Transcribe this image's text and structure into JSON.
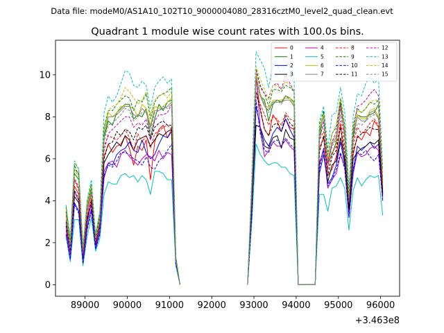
{
  "header": {
    "subtitle": "Data file: modeM0/AS1A10_102T10_9000004080_28316cztM0_level2_quad_clean.evt"
  },
  "chart_data": {
    "type": "line",
    "title": "Quadrant 1 module wise count rates with 100.0s bins.",
    "xlabel": "",
    "ylabel": "",
    "x_offset_label": "+3.463e8",
    "xlim": [
      88300,
      96450
    ],
    "ylim": [
      -0.55,
      11.65
    ],
    "xticks": [
      89000,
      90000,
      91000,
      92000,
      93000,
      94000,
      95000,
      96000
    ],
    "xtick_labels": [
      "89000",
      "90000",
      "91000",
      "92000",
      "93000",
      "94000",
      "95000",
      "96000"
    ],
    "yticks": [
      0,
      2,
      4,
      6,
      8,
      10
    ],
    "ytick_labels": [
      "0",
      "2",
      "4",
      "6",
      "8",
      "10"
    ],
    "legend_position": "top-right",
    "x": [
      88550,
      88650,
      88750,
      88850,
      88950,
      89050,
      89150,
      89250,
      89350,
      89450,
      89550,
      89650,
      89750,
      89850,
      89950,
      90050,
      90150,
      90250,
      90350,
      90450,
      90550,
      90650,
      90750,
      90850,
      90950,
      91050,
      91150,
      91250,
      92850,
      92950,
      93050,
      93150,
      93250,
      93350,
      93450,
      93550,
      93650,
      93750,
      93850,
      93950,
      94050,
      94450,
      94550,
      94650,
      94750,
      94850,
      94950,
      95050,
      95150,
      95250,
      95350,
      95450,
      95550,
      95650,
      95750,
      95850,
      95950,
      96050
    ],
    "gap_after": [
      27
    ],
    "series": [
      {
        "name": "0",
        "color": "#ff0000",
        "dash": "solid",
        "values": [
          3.3,
          1.8,
          4.7,
          4.3,
          1.4,
          3.2,
          4.1,
          2.0,
          3.0,
          6.1,
          6.7,
          6.3,
          6.6,
          6.7,
          7.1,
          6.5,
          5.7,
          6.6,
          6.4,
          6.9,
          5.0,
          6.8,
          7.4,
          7.6,
          7.0,
          7.4,
          1.2,
          0.0,
          0.0,
          4.0,
          9.8,
          8.3,
          7.4,
          7.1,
          8.1,
          7.8,
          7.3,
          7.9,
          7.5,
          7.4,
          0.0,
          0.0,
          6.5,
          7.0,
          5.2,
          5.5,
          6.1,
          7.6,
          5.8,
          3.5,
          6.2,
          7.1,
          6.9,
          7.3,
          7.1,
          7.8,
          7.5,
          4.4
        ]
      },
      {
        "name": "1",
        "color": "#008000",
        "dash": "solid",
        "values": [
          3.5,
          2.0,
          5.3,
          5.0,
          1.8,
          3.6,
          4.6,
          2.3,
          3.4,
          7.0,
          7.8,
          7.6,
          8.2,
          8.4,
          8.6,
          8.6,
          7.9,
          8.1,
          8.0,
          8.4,
          7.0,
          7.9,
          8.6,
          8.3,
          8.7,
          8.8,
          1.3,
          0.0,
          0.0,
          4.7,
          10.0,
          9.0,
          8.8,
          7.8,
          8.6,
          8.8,
          8.7,
          9.0,
          8.9,
          8.7,
          0.0,
          0.0,
          7.0,
          8.2,
          5.8,
          6.2,
          6.8,
          8.7,
          7.1,
          4.0,
          7.0,
          8.1,
          8.0,
          8.0,
          8.1,
          8.2,
          8.6,
          4.6
        ]
      },
      {
        "name": "2",
        "color": "#0000ff",
        "dash": "solid",
        "values": [
          2.4,
          1.2,
          3.9,
          3.5,
          1.0,
          2.7,
          3.6,
          1.7,
          2.5,
          5.1,
          5.8,
          5.7,
          6.2,
          6.4,
          6.5,
          6.8,
          6.4,
          6.3,
          6.9,
          6.3,
          6.0,
          6.2,
          6.7,
          7.1,
          7.0,
          7.3,
          1.0,
          0.0,
          0.0,
          3.4,
          8.5,
          7.5,
          6.9,
          6.6,
          7.2,
          7.5,
          7.3,
          7.9,
          7.4,
          7.0,
          0.0,
          0.0,
          5.3,
          6.2,
          4.8,
          5.1,
          5.7,
          6.8,
          5.7,
          3.3,
          5.5,
          6.6,
          6.4,
          6.6,
          6.8,
          6.5,
          6.7,
          4.2
        ]
      },
      {
        "name": "3",
        "color": "#000000",
        "dash": "solid",
        "values": [
          2.8,
          1.5,
          4.2,
          3.9,
          1.2,
          3.1,
          3.8,
          1.9,
          2.8,
          5.8,
          6.2,
          6.5,
          6.8,
          6.6,
          7.1,
          6.9,
          6.4,
          6.9,
          7.0,
          7.1,
          6.6,
          6.9,
          7.2,
          7.1,
          7.3,
          7.4,
          1.1,
          0.0,
          0.0,
          3.6,
          7.6,
          7.5,
          6.6,
          6.5,
          7.0,
          7.1,
          6.5,
          7.4,
          7.0,
          6.9,
          0.0,
          0.0,
          5.8,
          6.4,
          4.9,
          5.7,
          5.9,
          7.0,
          6.0,
          3.6,
          6.0,
          6.3,
          6.5,
          6.6,
          6.8,
          6.7,
          6.9,
          4.3
        ]
      },
      {
        "name": "4",
        "color": "#bf00bf",
        "dash": "solid",
        "values": [
          2.6,
          1.4,
          4.4,
          4.0,
          1.1,
          2.9,
          3.9,
          1.8,
          2.6,
          5.4,
          5.8,
          5.9,
          5.6,
          6.2,
          6.4,
          6.1,
          5.9,
          5.7,
          6.0,
          6.2,
          6.1,
          5.9,
          6.4,
          6.0,
          6.3,
          6.2,
          1.0,
          0.0,
          0.0,
          3.9,
          10.1,
          7.4,
          6.1,
          6.4,
          6.8,
          6.6,
          6.6,
          6.9,
          6.6,
          6.4,
          0.0,
          0.0,
          5.7,
          6.5,
          4.6,
          5.0,
          5.3,
          6.2,
          5.6,
          3.2,
          5.3,
          6.3,
          6.1,
          6.2,
          6.5,
          6.6,
          6.4,
          4.0
        ]
      },
      {
        "name": "5",
        "color": "#00bfbf",
        "dash": "solid",
        "values": [
          2.3,
          1.1,
          3.1,
          3.1,
          0.9,
          2.3,
          3.2,
          1.6,
          2.2,
          4.3,
          4.9,
          4.8,
          4.8,
          5.2,
          5.3,
          5.1,
          5.2,
          4.9,
          5.2,
          5.0,
          4.3,
          5.4,
          5.4,
          5.3,
          5.0,
          5.0,
          0.9,
          0.0,
          0.0,
          3.0,
          6.7,
          6.2,
          5.9,
          5.7,
          5.8,
          5.8,
          5.6,
          5.6,
          5.3,
          5.2,
          0.0,
          0.0,
          4.3,
          4.3,
          3.5,
          4.6,
          4.7,
          5.1,
          4.6,
          2.6,
          4.5,
          5.1,
          4.7,
          5.0,
          5.2,
          5.1,
          5.2,
          3.3
        ]
      },
      {
        "name": "6",
        "color": "#bfbf00",
        "dash": "solid",
        "values": [
          3.4,
          1.8,
          5.8,
          5.5,
          1.6,
          3.8,
          4.7,
          2.2,
          3.1,
          7.3,
          8.2,
          8.0,
          8.2,
          8.5,
          8.5,
          8.5,
          8.4,
          8.0,
          8.6,
          8.4,
          7.6,
          8.5,
          8.4,
          8.5,
          8.7,
          8.9,
          1.3,
          0.0,
          0.0,
          4.8,
          10.0,
          9.1,
          8.6,
          8.4,
          8.8,
          8.8,
          8.8,
          8.9,
          8.9,
          8.6,
          0.0,
          0.0,
          7.4,
          8.1,
          5.9,
          6.8,
          7.1,
          8.5,
          7.3,
          4.0,
          7.3,
          8.1,
          7.9,
          7.9,
          8.3,
          8.4,
          8.0,
          4.8
        ]
      },
      {
        "name": "7",
        "color": "#808080",
        "dash": "solid",
        "values": [
          3.4,
          1.8,
          5.5,
          5.3,
          1.6,
          3.6,
          4.5,
          2.1,
          3.0,
          7.1,
          8.0,
          8.0,
          8.1,
          8.3,
          8.5,
          8.5,
          8.1,
          8.0,
          8.4,
          8.2,
          7.5,
          8.3,
          8.3,
          8.4,
          8.5,
          8.7,
          1.3,
          0.0,
          0.0,
          4.7,
          9.9,
          9.0,
          8.5,
          8.3,
          8.7,
          8.7,
          8.7,
          8.8,
          8.8,
          8.5,
          0.0,
          0.0,
          7.3,
          8.0,
          5.8,
          6.7,
          7.0,
          8.4,
          7.2,
          3.9,
          7.2,
          8.0,
          7.8,
          7.8,
          8.2,
          8.3,
          7.9,
          4.7
        ]
      },
      {
        "name": "8",
        "color": "#ff0000",
        "dash": "dashed",
        "values": [
          3.6,
          2.0,
          5.0,
          4.5,
          1.5,
          3.5,
          4.3,
          2.1,
          3.2,
          6.6,
          7.1,
          7.0,
          6.9,
          7.1,
          7.4,
          7.0,
          6.4,
          7.2,
          6.8,
          7.1,
          6.5,
          7.2,
          7.3,
          7.5,
          7.6,
          7.4,
          1.2,
          0.0,
          0.0,
          4.2,
          9.0,
          8.6,
          8.1,
          7.6,
          8.0,
          7.9,
          7.6,
          8.2,
          7.9,
          7.8,
          0.0,
          0.0,
          6.9,
          7.3,
          5.5,
          6.3,
          6.6,
          7.8,
          6.6,
          3.8,
          6.7,
          7.5,
          7.2,
          7.4,
          7.7,
          7.9,
          7.6,
          4.5
        ]
      },
      {
        "name": "9",
        "color": "#008000",
        "dash": "dashed",
        "values": [
          3.7,
          2.1,
          5.7,
          5.2,
          1.7,
          3.9,
          4.8,
          2.3,
          3.3,
          7.5,
          8.3,
          8.3,
          8.6,
          8.8,
          9.0,
          8.9,
          8.3,
          8.8,
          8.7,
          9.1,
          7.9,
          8.7,
          9.0,
          9.1,
          9.2,
          9.4,
          1.3,
          0.0,
          0.0,
          5.0,
          10.3,
          9.5,
          9.1,
          8.5,
          9.3,
          9.3,
          9.2,
          9.5,
          9.4,
          9.2,
          0.0,
          0.0,
          7.6,
          8.3,
          6.2,
          7.2,
          7.5,
          8.9,
          7.6,
          4.2,
          7.6,
          8.4,
          8.2,
          8.4,
          8.7,
          8.6,
          8.8,
          4.9
        ]
      },
      {
        "name": "10",
        "color": "#0000ff",
        "dash": "dashed",
        "values": [
          2.4,
          1.2,
          3.8,
          3.4,
          1.0,
          2.6,
          3.5,
          1.7,
          2.4,
          5.2,
          5.7,
          5.6,
          5.9,
          6.3,
          6.3,
          6.2,
          6.0,
          5.9,
          5.7,
          6.1,
          5.6,
          5.5,
          5.9,
          6.1,
          6.4,
          6.7,
          1.0,
          0.0,
          0.0,
          3.3,
          8.8,
          7.2,
          6.4,
          6.3,
          6.8,
          6.9,
          6.6,
          7.0,
          6.7,
          6.5,
          0.0,
          0.0,
          5.5,
          6.5,
          4.7,
          5.0,
          5.5,
          6.3,
          5.5,
          3.2,
          5.4,
          6.3,
          6.2,
          6.4,
          6.1,
          5.9,
          6.2,
          4.0
        ]
      },
      {
        "name": "11",
        "color": "#000000",
        "dash": "dashed",
        "values": [
          3.0,
          1.6,
          4.5,
          4.1,
          1.3,
          3.2,
          4.0,
          1.9,
          2.9,
          6.0,
          6.7,
          6.8,
          7.3,
          7.1,
          7.4,
          7.3,
          6.9,
          7.5,
          7.4,
          7.6,
          6.9,
          7.5,
          7.7,
          7.8,
          7.6,
          7.6,
          1.2,
          0.0,
          0.0,
          3.9,
          9.2,
          8.4,
          7.4,
          7.1,
          7.6,
          7.7,
          7.3,
          8.1,
          7.7,
          7.5,
          0.0,
          0.0,
          6.3,
          7.1,
          5.2,
          6.1,
          6.4,
          7.5,
          6.3,
          3.7,
          6.4,
          7.0,
          7.2,
          7.3,
          7.5,
          7.4,
          7.4,
          4.4
        ]
      },
      {
        "name": "12",
        "color": "#bf00bf",
        "dash": "dashed",
        "values": [
          2.9,
          1.6,
          5.0,
          4.6,
          1.4,
          3.4,
          4.4,
          2.0,
          2.9,
          6.4,
          7.2,
          7.4,
          7.6,
          7.8,
          8.0,
          8.0,
          7.5,
          7.7,
          7.6,
          7.9,
          6.9,
          7.8,
          8.1,
          8.1,
          8.2,
          8.6,
          1.2,
          0.0,
          0.0,
          4.4,
          10.2,
          9.4,
          9.1,
          8.9,
          9.5,
          9.6,
          9.3,
          10.0,
          9.6,
          9.2,
          0.0,
          0.0,
          6.9,
          7.8,
          5.8,
          6.8,
          7.3,
          8.6,
          7.1,
          4.0,
          7.3,
          8.5,
          8.6,
          8.8,
          9.1,
          9.3,
          9.0,
          5.0
        ]
      },
      {
        "name": "13",
        "color": "#00bfbf",
        "dash": "dashed",
        "values": [
          3.8,
          2.2,
          5.9,
          5.5,
          1.8,
          4.0,
          5.0,
          2.4,
          3.5,
          8.2,
          9.0,
          8.7,
          9.0,
          9.6,
          10.2,
          10.1,
          9.5,
          9.4,
          9.7,
          9.5,
          8.4,
          9.4,
          9.7,
          9.9,
          9.6,
          9.8,
          1.4,
          0.0,
          0.0,
          5.3,
          11.1,
          10.7,
          10.3,
          9.4,
          10.5,
          10.5,
          10.0,
          10.5,
          10.5,
          10.0,
          0.0,
          0.0,
          7.8,
          8.5,
          6.5,
          8.1,
          8.2,
          9.4,
          8.2,
          4.6,
          8.0,
          9.1,
          9.0,
          9.6,
          9.9,
          9.6,
          9.8,
          5.5
        ]
      },
      {
        "name": "14",
        "color": "#bfbf00",
        "dash": "dashed",
        "values": [
          3.6,
          2.0,
          5.5,
          5.1,
          1.7,
          3.8,
          4.7,
          2.2,
          3.3,
          7.4,
          8.3,
          8.5,
          8.6,
          8.9,
          9.4,
          9.2,
          8.9,
          8.6,
          8.8,
          9.2,
          8.1,
          8.8,
          9.0,
          9.1,
          8.9,
          9.2,
          1.3,
          0.0,
          0.0,
          4.9,
          10.4,
          9.8,
          9.3,
          8.8,
          9.5,
          9.5,
          9.3,
          9.7,
          9.5,
          9.2,
          0.0,
          0.0,
          7.5,
          8.1,
          6.0,
          7.2,
          7.6,
          8.9,
          7.4,
          4.2,
          7.5,
          8.3,
          8.2,
          8.4,
          8.7,
          8.8,
          8.8,
          4.9
        ]
      },
      {
        "name": "15",
        "color": "#808080",
        "dash": "dashed",
        "values": [
          3.1,
          1.7,
          5.1,
          4.7,
          1.5,
          3.5,
          4.4,
          2.1,
          3.0,
          6.8,
          7.6,
          7.7,
          7.9,
          8.1,
          8.4,
          8.3,
          7.8,
          8.0,
          8.2,
          8.3,
          7.3,
          8.2,
          8.3,
          8.5,
          8.4,
          8.6,
          1.2,
          0.0,
          0.0,
          4.5,
          9.6,
          9.0,
          8.6,
          8.2,
          8.7,
          8.8,
          8.6,
          9.0,
          8.8,
          8.5,
          0.0,
          0.0,
          7.0,
          7.6,
          5.6,
          6.6,
          6.9,
          8.1,
          6.9,
          3.9,
          6.9,
          7.7,
          7.6,
          7.8,
          8.0,
          8.1,
          8.0,
          4.7
        ]
      }
    ]
  }
}
